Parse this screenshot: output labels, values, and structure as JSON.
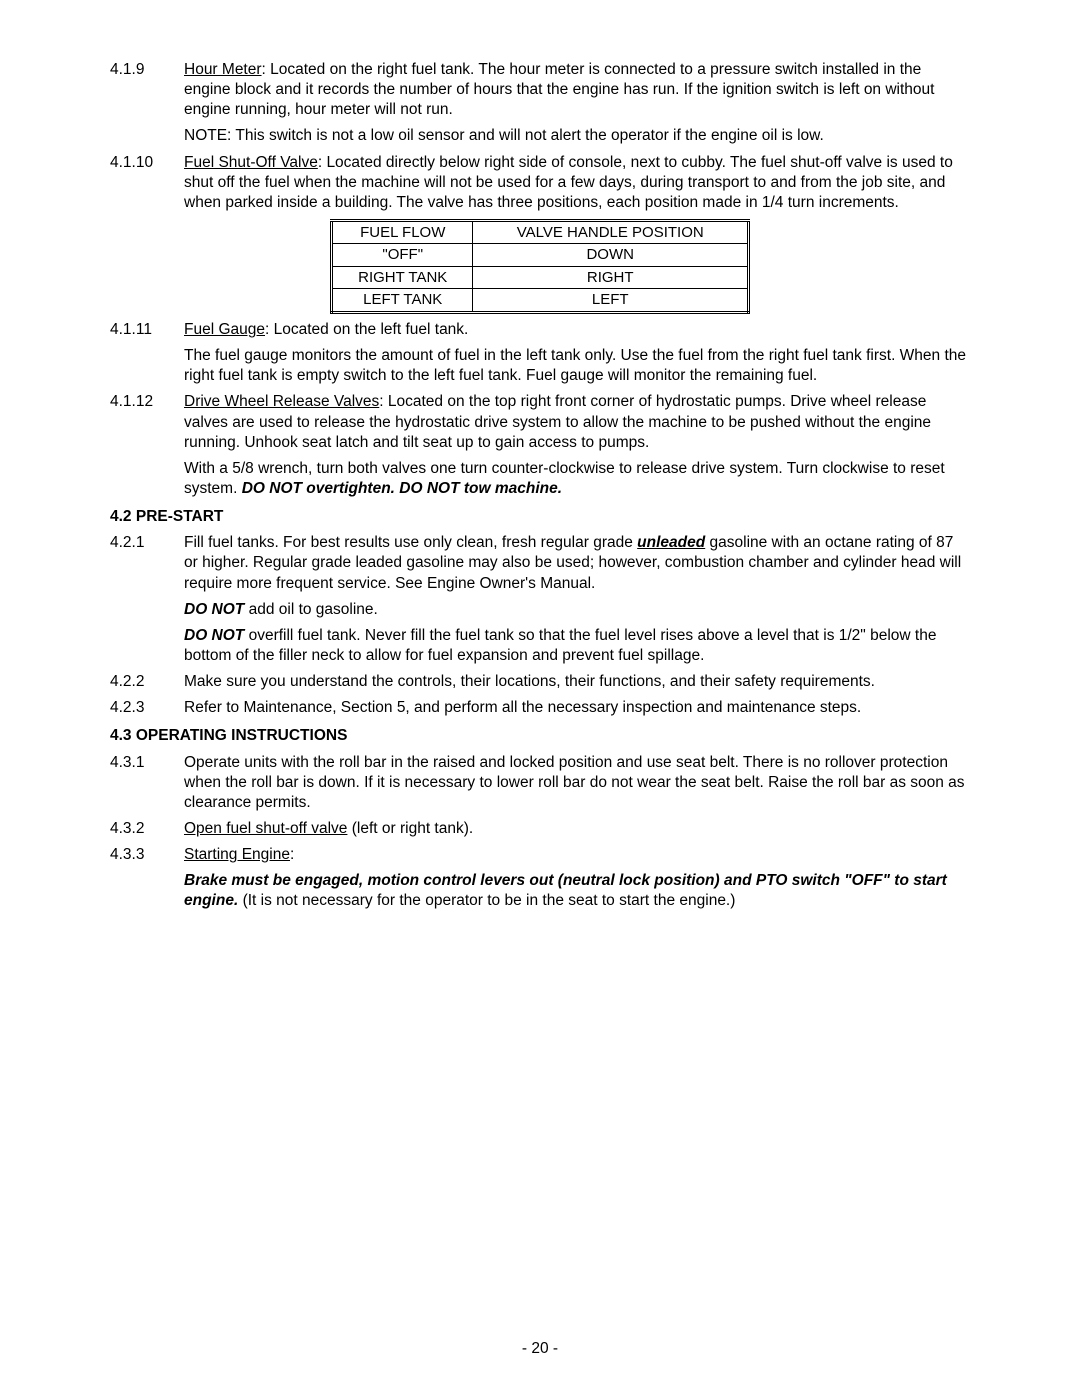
{
  "items": {
    "i4_1_9": {
      "num": "4.1.9",
      "p1a": "Hour Meter",
      "p1b": ": Located on the right fuel tank.  The hour meter is connected to a pressure switch installed in the engine block and it records the number of hours that the engine has run.  If the ignition switch is left on without engine running, hour meter will not run.",
      "p2": "NOTE: This switch is not a low oil sensor and will not alert the operator if the engine oil is low."
    },
    "i4_1_10": {
      "num": "4.1.10",
      "p1a": "Fuel Shut-Off Valve",
      "p1b": ": Located directly below right side of console, next to cubby.  The fuel shut-off valve is used to shut off the fuel when the machine will not be used for a few days, during transport to and from the job site, and when parked inside a building.  The valve has three positions, each position made in 1/4 turn increments."
    },
    "i4_1_11": {
      "num": "4.1.11",
      "p1a": "Fuel Gauge",
      "p1b": ":  Located on the left fuel tank.",
      "p2": "The fuel gauge monitors the amount of fuel in the left tank only.  Use the fuel from the right fuel tank first.  When the right fuel tank is empty switch to the left fuel tank.  Fuel gauge will monitor the remaining fuel."
    },
    "i4_1_12": {
      "num": "4.1.12",
      "p1a": "Drive Wheel Release Valves",
      "p1b": ": Located on the top right front corner of hydrostatic pumps.  Drive wheel release valves are used to release the hydrostatic drive system to allow the machine to be pushed without the engine running.  Unhook seat latch and tilt seat up to gain access to pumps.",
      "p2a": "With a 5/8 wrench, turn both valves one turn counter-clockwise to release drive system.  Turn clockwise to reset system.  ",
      "p2b": "DO NOT overtighten.  DO NOT tow machine."
    }
  },
  "valve_table": {
    "h1": "FUEL FLOW",
    "h2": "VALVE HANDLE POSITION",
    "rows": [
      {
        "c1": "\"OFF\"",
        "c2": "DOWN"
      },
      {
        "c1": "RIGHT TANK",
        "c2": "RIGHT"
      },
      {
        "c1": "LEFT TANK",
        "c2": "LEFT"
      }
    ]
  },
  "sec4_2": {
    "heading": "4.2 PRE-START",
    "i4_2_1": {
      "num": "4.2.1",
      "p1a": "Fill fuel tanks.  For best results use only clean, fresh regular grade ",
      "p1b": "unleaded",
      "p1c": " gasoline with an octane rating of 87 or higher.  Regular grade leaded gasoline may also be used; however, combustion chamber and cylinder head will require more frequent service.  See Engine Owner's Manual.",
      "p2a": "DO NOT",
      "p2b": " add oil to gasoline.",
      "p3a": "DO NOT",
      "p3b": " overfill fuel tank.  Never fill the fuel tank so that the fuel level rises above a level that is 1/2\" below the bottom of the filler neck to allow for fuel expansion and prevent fuel spillage."
    },
    "i4_2_2": {
      "num": "4.2.2",
      "p1": "Make sure you understand the controls, their locations, their functions, and their safety requirements."
    },
    "i4_2_3": {
      "num": "4.2.3",
      "p1": "Refer to Maintenance, Section 5, and perform all the necessary inspection and maintenance steps."
    }
  },
  "sec4_3": {
    "heading": "4.3 OPERATING INSTRUCTIONS",
    "i4_3_1": {
      "num": "4.3.1",
      "p1": "Operate units with the roll bar in the raised and locked position and use seat belt.  There is no rollover protection when the roll bar is down.  If it is necessary to lower roll bar do not wear the seat belt.  Raise the roll bar as soon as clearance permits."
    },
    "i4_3_2": {
      "num": "4.3.2",
      "p1a": "Open fuel shut-off valve",
      "p1b": " (left or right tank)."
    },
    "i4_3_3": {
      "num": "4.3.3",
      "p1a": "Starting Engine",
      "p1b": ":",
      "p2a": "Brake must be engaged, motion control levers out (neutral lock position) and PTO switch \"OFF\" to start engine.",
      "p2b": " (It is not necessary for the operator to be in the seat to start the engine.)"
    }
  },
  "page_number": "- 20 -"
}
